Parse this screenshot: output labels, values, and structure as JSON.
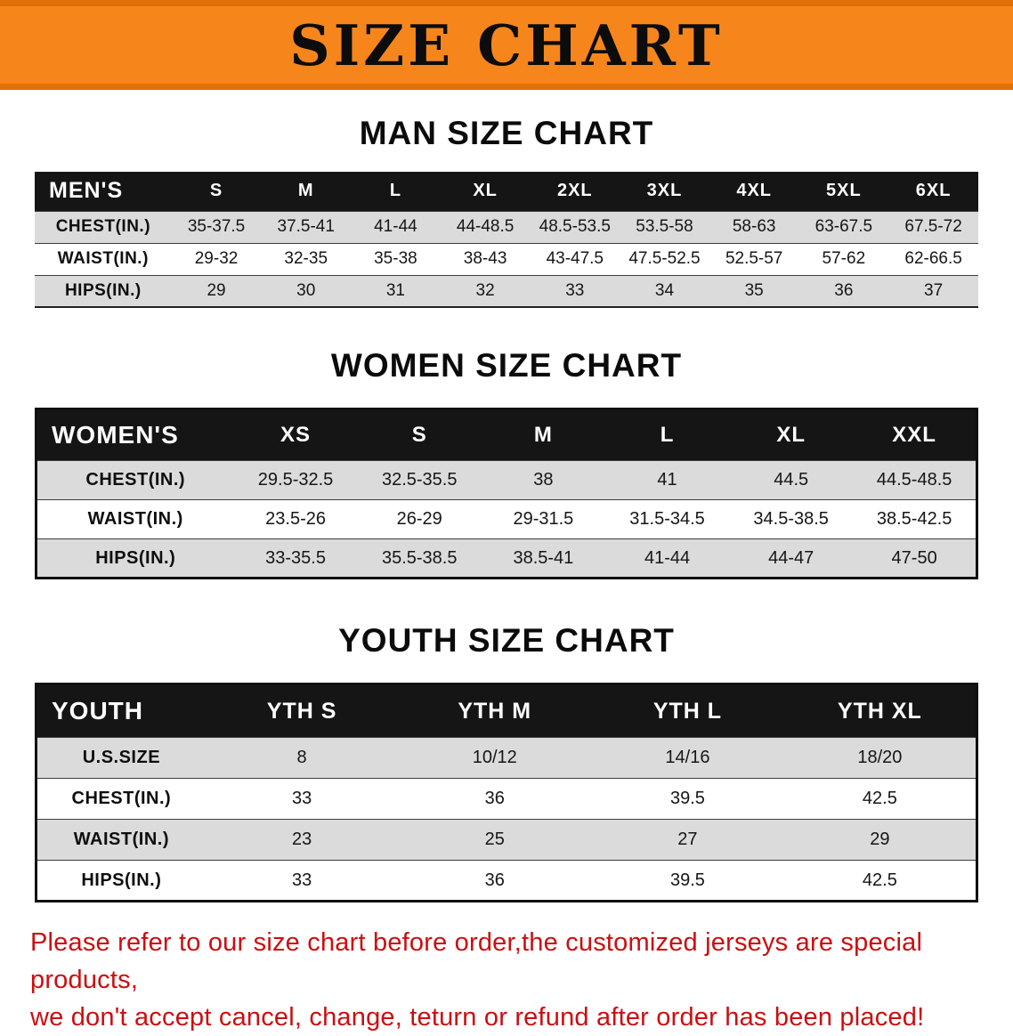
{
  "banner": {
    "title": "SIZE CHART"
  },
  "colors": {
    "banner_bg": "#F6861C",
    "banner_edge": "#E06F08",
    "table_header_bg": "#151515",
    "stripe": "#DBDBDB",
    "footer_red": "#CB0E10"
  },
  "men": {
    "heading": "MAN SIZE CHART",
    "header": [
      "MEN'S",
      "S",
      "M",
      "L",
      "XL",
      "2XL",
      "3XL",
      "4XL",
      "5XL",
      "6XL"
    ],
    "rows": [
      {
        "label": "CHEST(IN.)",
        "values": [
          "35-37.5",
          "37.5-41",
          "41-44",
          "44-48.5",
          "48.5-53.5",
          "53.5-58",
          "58-63",
          "63-67.5",
          "67.5-72"
        ]
      },
      {
        "label": "WAIST(IN.)",
        "values": [
          "29-32",
          "32-35",
          "35-38",
          "38-43",
          "43-47.5",
          "47.5-52.5",
          "52.5-57",
          "57-62",
          "62-66.5"
        ]
      },
      {
        "label": "HIPS(IN.)",
        "values": [
          "29",
          "30",
          "31",
          "32",
          "33",
          "34",
          "35",
          "36",
          "37"
        ]
      }
    ]
  },
  "women": {
    "heading": "WOMEN SIZE CHART",
    "header": [
      "WOMEN'S",
      "XS",
      "S",
      "M",
      "L",
      "XL",
      "XXL"
    ],
    "rows": [
      {
        "label": "CHEST(IN.)",
        "values": [
          "29.5-32.5",
          "32.5-35.5",
          "38",
          "41",
          "44.5",
          "44.5-48.5"
        ]
      },
      {
        "label": "WAIST(IN.)",
        "values": [
          "23.5-26",
          "26-29",
          "29-31.5",
          "31.5-34.5",
          "34.5-38.5",
          "38.5-42.5"
        ]
      },
      {
        "label": "HIPS(IN.)",
        "values": [
          "33-35.5",
          "35.5-38.5",
          "38.5-41",
          "41-44",
          "44-47",
          "47-50"
        ]
      }
    ]
  },
  "youth": {
    "heading": "YOUTH SIZE CHART",
    "header": [
      "YOUTH",
      "YTH S",
      "YTH M",
      "YTH L",
      "YTH XL"
    ],
    "rows": [
      {
        "label": "U.S.SIZE",
        "values": [
          "8",
          "10/12",
          "14/16",
          "18/20"
        ]
      },
      {
        "label": "CHEST(IN.)",
        "values": [
          "33",
          "36",
          "39.5",
          "42.5"
        ]
      },
      {
        "label": "WAIST(IN.)",
        "values": [
          "23",
          "25",
          "27",
          "29"
        ]
      },
      {
        "label": "HIPS(IN.)",
        "values": [
          "33",
          "36",
          "39.5",
          "42.5"
        ]
      }
    ]
  },
  "footer": {
    "line1": "Please refer to our size chart before order,the customized jerseys are special products,",
    "line2": "we don't accept cancel, change, teturn or refund after order has been placed!"
  }
}
